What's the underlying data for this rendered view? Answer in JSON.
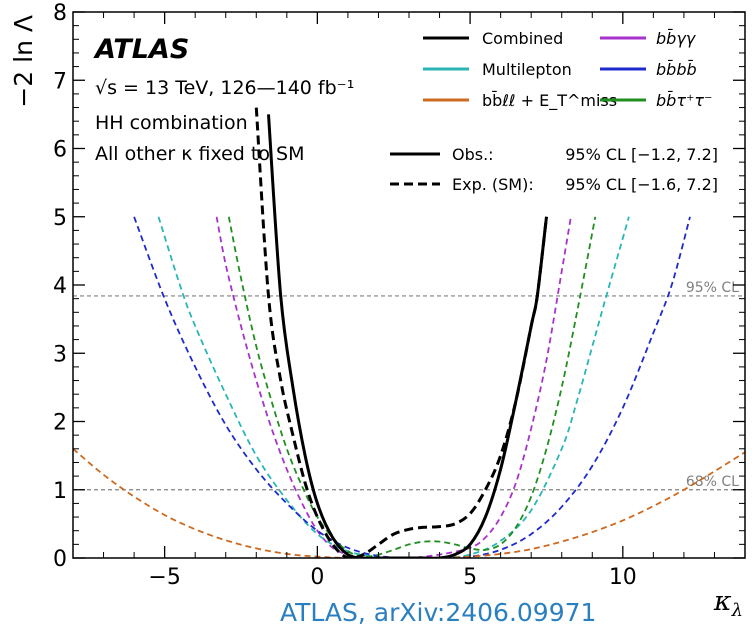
{
  "chart_data": {
    "type": "line",
    "xlabel": "κλ",
    "ylabel": "−2 ln Λ",
    "xlim": [
      -8,
      14
    ],
    "ylim": [
      0,
      8
    ],
    "x_ticks": [
      -5,
      0,
      5,
      10
    ],
    "x_tick_labels": [
      "−5",
      "0",
      "5",
      "10"
    ],
    "y_ticks": [
      0,
      1,
      2,
      3,
      4,
      5,
      6,
      7,
      8
    ],
    "y_tick_labels": [
      "0",
      "1",
      "2",
      "3",
      "4",
      "5",
      "6",
      "7",
      "8"
    ],
    "header": {
      "experiment": "ATLAS",
      "energy": "√s = 13 TeV, 126—140 fb⁻¹",
      "analysis": "HH combination",
      "assumption": "All other κ fixed to SM"
    },
    "thresholds": [
      {
        "label": "95% CL",
        "y": 3.84
      },
      {
        "label": "68% CL",
        "y": 1.0
      }
    ],
    "legend": {
      "placement": "top-right",
      "entries": [
        {
          "label": "Combined",
          "color": "#000000",
          "style": "solid"
        },
        {
          "label": "bb̄γγ",
          "color": "#a833cc",
          "style": "solid"
        },
        {
          "label": "Multilepton",
          "color": "#2ab5b5",
          "style": "solid"
        },
        {
          "label": "bb̄bb̄",
          "color": "#1f2acc",
          "style": "solid"
        },
        {
          "label": "bb̄ℓℓ + E_T^miss",
          "color": "#cc6a1f",
          "style": "solid"
        },
        {
          "label": "bb̄τ⁺τ⁻",
          "color": "#1f8f1f",
          "style": "solid"
        }
      ],
      "results": [
        {
          "label": "Obs.:",
          "text": "95% CL [−1.2, 7.2]",
          "style": "solid"
        },
        {
          "label": "Exp. (SM):",
          "text": "95% CL [−1.6, 7.2]",
          "style": "dashed"
        }
      ]
    },
    "series": [
      {
        "name": "Combined Obs.",
        "color": "#000000",
        "style": "solid",
        "x": [
          -1.6,
          -1.2,
          -0.8,
          -0.4,
          0,
          0.5,
          1,
          1.5,
          2,
          2.5,
          3,
          3.5,
          4,
          4.5,
          5,
          5.5,
          6,
          6.5,
          7,
          7.2,
          7.5
        ],
        "y": [
          6.5,
          3.84,
          2.5,
          1.5,
          0.8,
          0.3,
          0.05,
          0.0,
          0.0,
          0.0,
          0.0,
          0.0,
          0.0,
          0.05,
          0.2,
          0.6,
          1.3,
          2.3,
          3.4,
          3.84,
          5.0
        ]
      },
      {
        "name": "Combined Exp. (SM)",
        "color": "#000000",
        "style": "dashed",
        "x": [
          -2.0,
          -1.6,
          -1.2,
          -0.8,
          -0.4,
          0,
          0.5,
          1,
          1.5,
          2,
          2.5,
          3,
          3.5,
          4,
          4.5,
          5,
          5.5,
          6,
          6.5,
          7,
          7.2,
          7.5
        ],
        "y": [
          6.6,
          3.84,
          2.6,
          1.8,
          1.1,
          0.6,
          0.2,
          0.0,
          0.05,
          0.2,
          0.35,
          0.42,
          0.45,
          0.46,
          0.5,
          0.65,
          1.0,
          1.5,
          2.3,
          3.4,
          3.84,
          5.0
        ]
      },
      {
        "name": "bb̄γγ",
        "color": "#a833cc",
        "style": "dashed",
        "x": [
          -3.3,
          -3.0,
          -2.5,
          -2.0,
          -1.5,
          -1.0,
          -0.5,
          0,
          0.5,
          1,
          1.5,
          2,
          3,
          4,
          5,
          5.5,
          6,
          6.5,
          7,
          7.5,
          8,
          8.3
        ],
        "y": [
          5.0,
          4.3,
          3.4,
          2.6,
          1.9,
          1.3,
          0.8,
          0.4,
          0.15,
          0.05,
          0.0,
          0.0,
          0.0,
          0.05,
          0.15,
          0.3,
          0.6,
          1.1,
          1.9,
          2.9,
          4.2,
          5.0
        ]
      },
      {
        "name": "Multilepton",
        "color": "#2ab5b5",
        "style": "dashed",
        "x": [
          -5.2,
          -4.5,
          -4.0,
          -3.0,
          -2.0,
          -1.0,
          0,
          1,
          2,
          3,
          4,
          5,
          6,
          7,
          8,
          8.5,
          9,
          9.5,
          10.2
        ],
        "y": [
          5.0,
          4.0,
          3.4,
          2.4,
          1.5,
          0.85,
          0.35,
          0.1,
          0.02,
          0.0,
          0.0,
          0.05,
          0.25,
          0.7,
          1.6,
          2.3,
          3.1,
          3.9,
          5.0
        ]
      },
      {
        "name": "bb̄bb̄",
        "color": "#1f2acc",
        "style": "dashed",
        "x": [
          -6.0,
          -5.0,
          -4.0,
          -3.0,
          -2.0,
          -1.0,
          0,
          1,
          2,
          3,
          4,
          5,
          6,
          7,
          8,
          9,
          10,
          11,
          11.6,
          12.2
        ],
        "y": [
          5.0,
          3.8,
          2.8,
          1.95,
          1.3,
          0.8,
          0.4,
          0.15,
          0.03,
          0.0,
          0.0,
          0.02,
          0.12,
          0.35,
          0.75,
          1.35,
          2.2,
          3.3,
          4.0,
          5.0
        ]
      },
      {
        "name": "bb̄ℓℓ + E_T^miss",
        "color": "#cc6a1f",
        "style": "dashed",
        "x": [
          -8.0,
          -7.0,
          -6.0,
          -5.0,
          -4.0,
          -3.0,
          -2.0,
          -1.0,
          0,
          1,
          2,
          3,
          4,
          5,
          6,
          7,
          8,
          9,
          10,
          11,
          12,
          13,
          14
        ],
        "y": [
          1.6,
          1.22,
          0.9,
          0.63,
          0.42,
          0.26,
          0.14,
          0.06,
          0.02,
          0.0,
          0.0,
          0.0,
          0.0,
          0.02,
          0.06,
          0.13,
          0.24,
          0.38,
          0.55,
          0.76,
          1.0,
          1.27,
          1.55
        ]
      },
      {
        "name": "bb̄τ⁺τ⁻",
        "color": "#1f8f1f",
        "style": "dashed",
        "x": [
          -2.9,
          -2.5,
          -2.0,
          -1.5,
          -1.0,
          -0.5,
          0,
          0.5,
          1,
          1.5,
          2,
          2.5,
          3,
          3.5,
          4,
          4.5,
          5,
          5.5,
          6,
          6.5,
          7,
          7.5,
          8,
          8.5,
          9.1
        ],
        "y": [
          5.0,
          4.1,
          3.1,
          2.3,
          1.6,
          1.05,
          0.6,
          0.3,
          0.1,
          0.02,
          0.05,
          0.12,
          0.2,
          0.24,
          0.24,
          0.2,
          0.14,
          0.12,
          0.2,
          0.45,
          0.9,
          1.6,
          2.5,
          3.6,
          5.0
        ]
      }
    ]
  },
  "footer": {
    "credit": "ATLAS, arXiv:2406.09971"
  }
}
